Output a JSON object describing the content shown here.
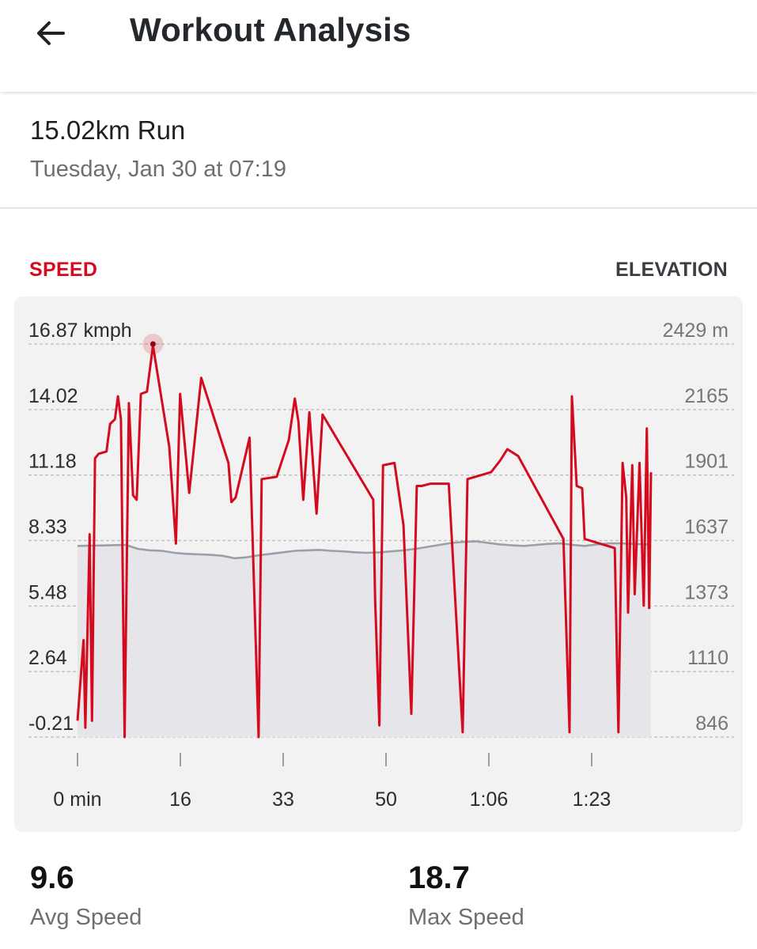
{
  "header": {
    "back_icon": "arrow-left-icon",
    "title": "Workout Analysis"
  },
  "workout": {
    "name": "15.02km Run",
    "date": "Tuesday, Jan 30 at 07:19"
  },
  "tabs": {
    "speed": "SPEED",
    "elevation": "ELEVATION"
  },
  "colors": {
    "speed": "#d40b1f",
    "elevation": "#9aa0a8",
    "tab_active": "#d40b1f"
  },
  "chart_data": {
    "type": "line",
    "left_axis": {
      "label_unit": "kmph",
      "ticks": [
        "16.87 kmph",
        "14.02",
        "11.18",
        "8.33",
        "5.48",
        "2.64",
        "-0.21"
      ],
      "ylim": [
        -0.21,
        16.87
      ]
    },
    "right_axis": {
      "ticks": [
        "2429 m",
        "2165",
        "1901",
        "1637",
        "1373",
        "1110",
        "846"
      ],
      "ylim": [
        846,
        2429
      ]
    },
    "x_ticks": [
      "0 min",
      "16",
      "33",
      "50",
      "1:06",
      "1:23"
    ],
    "xlim": [
      0,
      95
    ],
    "grid": true,
    "highlight": {
      "x": 12.5,
      "y": 16.87
    },
    "series": [
      {
        "axis": "left",
        "values": [
          [
            0.0,
            0.5
          ],
          [
            1.0,
            4.0
          ],
          [
            1.3,
            0.2
          ],
          [
            2.0,
            8.6
          ],
          [
            2.4,
            0.5
          ],
          [
            2.9,
            11.9
          ],
          [
            3.5,
            12.1
          ],
          [
            4.8,
            12.2
          ],
          [
            5.4,
            13.4
          ],
          [
            6.2,
            13.6
          ],
          [
            6.7,
            14.6
          ],
          [
            7.2,
            13.6
          ],
          [
            7.8,
            -0.21
          ],
          [
            8.5,
            14.3
          ],
          [
            9.2,
            10.3
          ],
          [
            9.8,
            10.1
          ],
          [
            10.5,
            14.7
          ],
          [
            11.5,
            14.8
          ],
          [
            12.5,
            16.8
          ],
          [
            15.2,
            12.4
          ],
          [
            16.3,
            8.2
          ],
          [
            17.0,
            14.7
          ],
          [
            18.5,
            10.4
          ],
          [
            20.5,
            15.4
          ],
          [
            25.0,
            11.7
          ],
          [
            25.5,
            10.0
          ],
          [
            26.2,
            10.2
          ],
          [
            28.5,
            12.8
          ],
          [
            30.0,
            -0.21
          ],
          [
            30.5,
            11.0
          ],
          [
            33.0,
            11.1
          ],
          [
            35.0,
            12.7
          ],
          [
            36.0,
            14.5
          ],
          [
            36.6,
            13.5
          ],
          [
            37.4,
            10.1
          ],
          [
            38.4,
            13.9
          ],
          [
            39.6,
            9.5
          ],
          [
            40.6,
            13.8
          ],
          [
            49.0,
            10.1
          ],
          [
            49.3,
            5.8
          ],
          [
            50.0,
            0.3
          ],
          [
            50.6,
            11.6
          ],
          [
            52.5,
            11.7
          ],
          [
            54.0,
            9.0
          ],
          [
            55.3,
            0.8
          ],
          [
            56.2,
            10.7
          ],
          [
            57.0,
            10.7
          ],
          [
            58.5,
            10.8
          ],
          [
            61.5,
            10.8
          ],
          [
            63.8,
            0.0
          ],
          [
            64.6,
            11.0
          ],
          [
            68.5,
            11.3
          ],
          [
            70.0,
            11.8
          ],
          [
            71.2,
            12.3
          ],
          [
            73.0,
            12.0
          ],
          [
            80.5,
            8.4
          ],
          [
            81.5,
            0.0
          ],
          [
            81.9,
            14.6
          ],
          [
            82.7,
            10.7
          ],
          [
            83.6,
            10.6
          ],
          [
            84.0,
            8.4
          ],
          [
            89.0,
            8.0
          ],
          [
            89.6,
            0.0
          ],
          [
            90.3,
            11.7
          ],
          [
            90.9,
            10.2
          ],
          [
            91.2,
            5.2
          ],
          [
            91.9,
            11.6
          ],
          [
            92.3,
            6.0
          ],
          [
            93.1,
            11.7
          ],
          [
            93.8,
            5.5
          ],
          [
            94.3,
            13.2
          ],
          [
            94.7,
            5.4
          ],
          [
            95.0,
            11.3
          ]
        ]
      },
      {
        "axis": "right",
        "values": [
          [
            0,
            1616
          ],
          [
            5,
            1618
          ],
          [
            8,
            1620
          ],
          [
            10,
            1604
          ],
          [
            12,
            1598
          ],
          [
            14,
            1596
          ],
          [
            16,
            1588
          ],
          [
            18,
            1584
          ],
          [
            20,
            1582
          ],
          [
            22,
            1580
          ],
          [
            24,
            1576
          ],
          [
            26,
            1566
          ],
          [
            28,
            1570
          ],
          [
            30,
            1578
          ],
          [
            32,
            1584
          ],
          [
            34,
            1590
          ],
          [
            36,
            1596
          ],
          [
            38,
            1598
          ],
          [
            40,
            1600
          ],
          [
            42,
            1596
          ],
          [
            44,
            1594
          ],
          [
            46,
            1590
          ],
          [
            48,
            1588
          ],
          [
            50,
            1590
          ],
          [
            52,
            1594
          ],
          [
            54,
            1598
          ],
          [
            56,
            1604
          ],
          [
            58,
            1612
          ],
          [
            60,
            1620
          ],
          [
            62,
            1628
          ],
          [
            64,
            1632
          ],
          [
            66,
            1634
          ],
          [
            68,
            1628
          ],
          [
            70,
            1622
          ],
          [
            72,
            1618
          ],
          [
            74,
            1616
          ],
          [
            76,
            1620
          ],
          [
            78,
            1624
          ],
          [
            80,
            1626
          ],
          [
            82,
            1620
          ],
          [
            84,
            1616
          ],
          [
            86,
            1622
          ],
          [
            88,
            1626
          ],
          [
            90,
            1626
          ],
          [
            92,
            1624
          ],
          [
            95,
            1622
          ]
        ]
      }
    ]
  },
  "stats": {
    "avg": {
      "value": "9.6",
      "label": "Avg Speed"
    },
    "max": {
      "value": "18.7",
      "label": "Max Speed"
    }
  }
}
